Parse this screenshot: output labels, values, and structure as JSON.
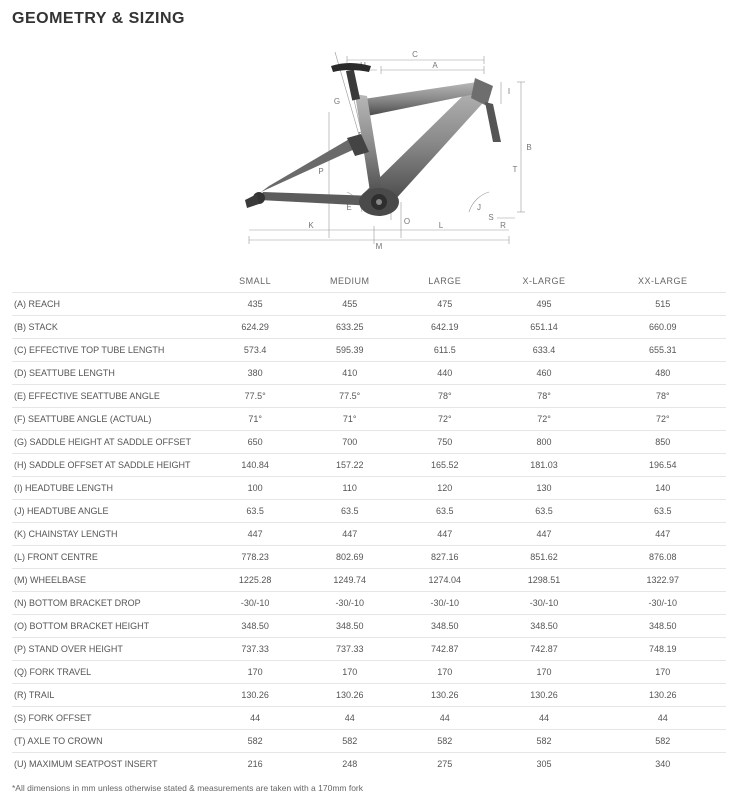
{
  "title": "GEOMETRY & SIZING",
  "footnote": "*All dimensions in mm unless otherwise stated & measurements are taken with a 170mm fork",
  "table": {
    "columns": [
      "SMALL",
      "MEDIUM",
      "LARGE",
      "X-LARGE",
      "XX-LARGE"
    ],
    "rows": [
      {
        "label": "(A) REACH",
        "values": [
          "435",
          "455",
          "475",
          "495",
          "515"
        ]
      },
      {
        "label": "(B) STACK",
        "values": [
          "624.29",
          "633.25",
          "642.19",
          "651.14",
          "660.09"
        ]
      },
      {
        "label": "(C) EFFECTIVE TOP TUBE LENGTH",
        "values": [
          "573.4",
          "595.39",
          "611.5",
          "633.4",
          "655.31"
        ]
      },
      {
        "label": "(D) SEATTUBE LENGTH",
        "values": [
          "380",
          "410",
          "440",
          "460",
          "480"
        ]
      },
      {
        "label": "(E) EFFECTIVE SEATTUBE ANGLE",
        "values": [
          "77.5°",
          "77.5°",
          "78°",
          "78°",
          "78°"
        ]
      },
      {
        "label": "(F) SEATTUBE ANGLE (ACTUAL)",
        "values": [
          "71°",
          "71°",
          "72°",
          "72°",
          "72°"
        ]
      },
      {
        "label": "(G) SADDLE HEIGHT AT SADDLE OFFSET",
        "values": [
          "650",
          "700",
          "750",
          "800",
          "850"
        ]
      },
      {
        "label": "(H) SADDLE OFFSET AT SADDLE HEIGHT",
        "values": [
          "140.84",
          "157.22",
          "165.52",
          "181.03",
          "196.54"
        ]
      },
      {
        "label": "(I) HEADTUBE LENGTH",
        "values": [
          "100",
          "110",
          "120",
          "130",
          "140"
        ]
      },
      {
        "label": "(J) HEADTUBE ANGLE",
        "values": [
          "63.5",
          "63.5",
          "63.5",
          "63.5",
          "63.5"
        ]
      },
      {
        "label": "(K) CHAINSTAY LENGTH",
        "values": [
          "447",
          "447",
          "447",
          "447",
          "447"
        ]
      },
      {
        "label": "(L) FRONT CENTRE",
        "values": [
          "778.23",
          "802.69",
          "827.16",
          "851.62",
          "876.08"
        ]
      },
      {
        "label": "(M) WHEELBASE",
        "values": [
          "1225.28",
          "1249.74",
          "1274.04",
          "1298.51",
          "1322.97"
        ]
      },
      {
        "label": "(N) BOTTOM BRACKET DROP",
        "values": [
          "-30/-10",
          "-30/-10",
          "-30/-10",
          "-30/-10",
          "-30/-10"
        ]
      },
      {
        "label": "(O) BOTTOM BRACKET HEIGHT",
        "values": [
          "348.50",
          "348.50",
          "348.50",
          "348.50",
          "348.50"
        ]
      },
      {
        "label": "(P) STAND OVER HEIGHT",
        "values": [
          "737.33",
          "737.33",
          "742.87",
          "742.87",
          "748.19"
        ]
      },
      {
        "label": "(Q) FORK TRAVEL",
        "values": [
          "170",
          "170",
          "170",
          "170",
          "170"
        ]
      },
      {
        "label": "(R) TRAIL",
        "values": [
          "130.26",
          "130.26",
          "130.26",
          "130.26",
          "130.26"
        ]
      },
      {
        "label": "(S) FORK OFFSET",
        "values": [
          "44",
          "44",
          "44",
          "44",
          "44"
        ]
      },
      {
        "label": "(T) AXLE TO CROWN",
        "values": [
          "582",
          "582",
          "582",
          "582",
          "582"
        ]
      },
      {
        "label": "(U) MAXIMUM SEATPOST INSERT",
        "values": [
          "216",
          "248",
          "275",
          "305",
          "340"
        ]
      }
    ]
  },
  "diagram": {
    "frame_fill_top": "#9a9a9a",
    "frame_fill_bottom": "#555555",
    "frame_dark": "#2f2f2f",
    "dim_line_color": "#888888",
    "label_color": "#777777",
    "label_fontsize": 8,
    "bg": "#ffffff",
    "labels": {
      "A": "A",
      "B": "B",
      "C": "C",
      "D": "D",
      "E": "E",
      "F": "F",
      "G": "G",
      "H": "H",
      "I": "I",
      "J": "J",
      "K": "K",
      "L": "L",
      "M": "M",
      "N": "N",
      "O": "O",
      "P": "P",
      "R": "R",
      "S": "S",
      "T": "T"
    }
  }
}
